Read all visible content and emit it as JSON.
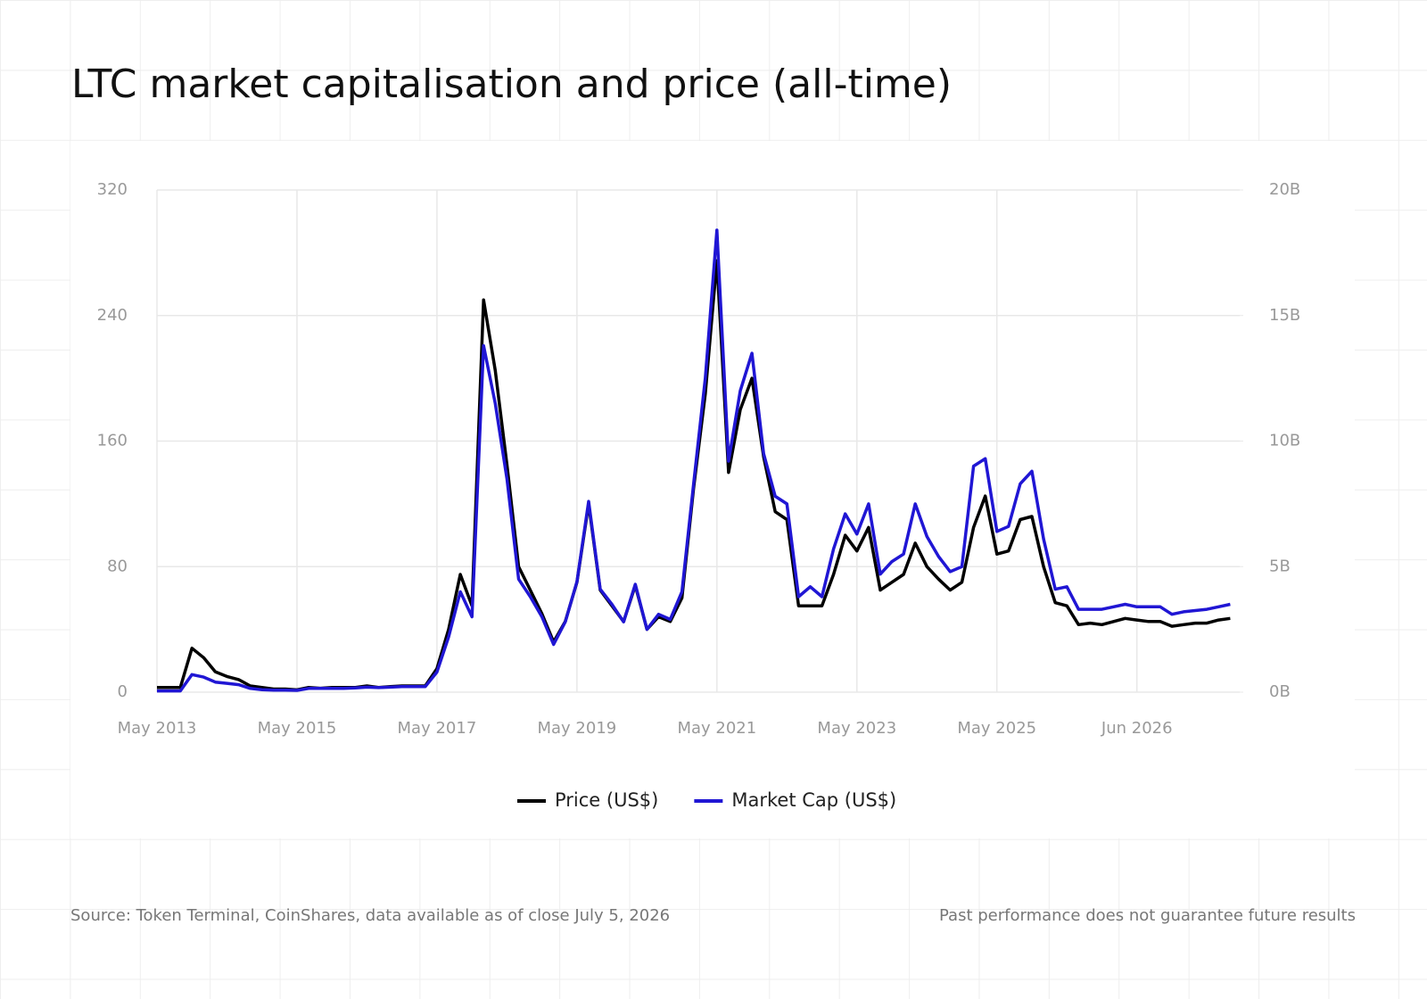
{
  "chart_data": {
    "type": "line",
    "title": "LTC market capitalisation and price (all-time)",
    "source": "Source: Token Terminal, CoinShares, data available as of close July 5, 2026",
    "disclaimer": "Past performance does not guarantee future results",
    "categories": [
      "May 2013",
      null,
      null,
      null,
      null,
      null,
      null,
      null,
      null,
      null,
      null,
      null,
      "May 2015",
      null,
      null,
      null,
      null,
      null,
      null,
      null,
      null,
      null,
      null,
      null,
      "May 2017",
      null,
      null,
      null,
      null,
      null,
      null,
      null,
      null,
      null,
      null,
      null,
      "May 2019",
      null,
      null,
      null,
      null,
      null,
      null,
      null,
      null,
      null,
      null,
      null,
      "May 2021",
      null,
      null,
      null,
      null,
      null,
      null,
      null,
      null,
      null,
      null,
      null,
      "May 2023",
      null,
      null,
      null,
      null,
      null,
      null,
      null,
      null,
      null,
      null,
      null,
      "May 2025",
      null,
      null,
      null,
      null,
      null,
      null,
      null,
      null,
      null,
      null,
      null,
      "Jun 2026",
      null,
      null,
      null,
      null,
      null,
      null,
      null,
      null
    ],
    "series": [
      {
        "name": "Price (US$)",
        "color": "#000000",
        "axis": "y",
        "values": [
          3,
          3,
          3,
          28,
          22,
          13,
          10,
          8,
          4,
          3,
          2,
          2,
          1.5,
          3,
          2.5,
          3,
          3,
          3,
          4,
          3,
          3.5,
          4,
          4,
          4,
          15,
          40,
          75,
          55,
          250,
          205,
          145,
          80,
          65,
          50,
          32,
          45,
          70,
          120,
          65,
          55,
          45,
          68,
          40,
          48,
          45,
          60,
          130,
          190,
          275,
          140,
          180,
          200,
          150,
          115,
          110,
          55,
          55,
          55,
          75,
          100,
          90,
          105,
          65,
          70,
          75,
          95,
          80,
          72,
          65,
          70,
          105,
          125,
          88,
          90,
          110,
          112,
          80,
          57,
          55,
          43,
          44,
          43,
          45,
          47,
          46,
          45,
          45,
          42,
          43,
          44,
          44,
          46,
          47
        ]
      },
      {
        "name": "Market Cap (US$)",
        "color": "#2016d4",
        "axis": "y2",
        "values": [
          0.05,
          0.05,
          0.05,
          0.7,
          0.6,
          0.4,
          0.35,
          0.3,
          0.15,
          0.1,
          0.08,
          0.08,
          0.07,
          0.15,
          0.15,
          0.15,
          0.15,
          0.17,
          0.2,
          0.18,
          0.2,
          0.22,
          0.22,
          0.22,
          0.8,
          2.2,
          4.0,
          3.0,
          13.8,
          11.5,
          8.5,
          4.5,
          3.8,
          3.0,
          1.9,
          2.8,
          4.4,
          7.6,
          4.1,
          3.5,
          2.8,
          4.3,
          2.5,
          3.1,
          2.9,
          4.0,
          8.3,
          12.5,
          18.4,
          9.2,
          12.0,
          13.5,
          9.5,
          7.8,
          7.5,
          3.8,
          4.2,
          3.8,
          5.7,
          7.1,
          6.3,
          7.5,
          4.7,
          5.2,
          5.5,
          7.5,
          6.2,
          5.4,
          4.8,
          5.0,
          9.0,
          9.3,
          6.4,
          6.6,
          8.3,
          8.8,
          6.1,
          4.1,
          4.2,
          3.3,
          3.3,
          3.3,
          3.4,
          3.5,
          3.4,
          3.4,
          3.4,
          3.1,
          3.2,
          3.25,
          3.3,
          3.4,
          3.5
        ]
      }
    ],
    "ylim": [
      0,
      320
    ],
    "yticks": [
      0,
      80,
      160,
      240,
      320
    ],
    "y2lim": [
      0,
      20
    ],
    "y2ticks": [
      {
        "value": 0,
        "label": "0B"
      },
      {
        "value": 5,
        "label": "5B"
      },
      {
        "value": 10,
        "label": "10B"
      },
      {
        "value": 15,
        "label": "15B"
      },
      {
        "value": 20,
        "label": "20B"
      }
    ],
    "grid": true,
    "legend": "bottom"
  }
}
